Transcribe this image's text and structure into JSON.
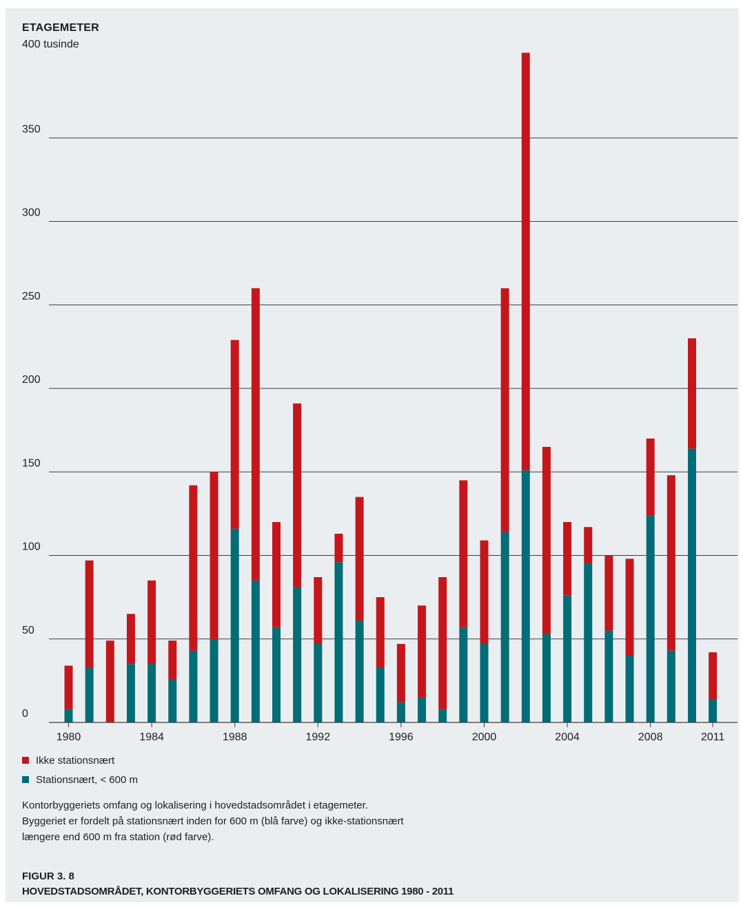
{
  "chart_data": {
    "type": "bar",
    "stacked": true,
    "ylabel_line1": "ETAGEMETER",
    "ylabel_line2": "400 tusinde",
    "ylim": [
      0,
      400
    ],
    "ytick_labels": [
      "0",
      "50",
      "100",
      "150",
      "200",
      "250",
      "300",
      "350"
    ],
    "ytick_values": [
      0,
      50,
      100,
      150,
      200,
      250,
      300,
      350
    ],
    "grid": true,
    "x": [
      1980,
      1981,
      1982,
      1983,
      1984,
      1985,
      1986,
      1987,
      1988,
      1989,
      1990,
      1991,
      1992,
      1993,
      1994,
      1995,
      1996,
      1997,
      1998,
      1999,
      2000,
      2001,
      2002,
      2003,
      2004,
      2005,
      2006,
      2007,
      2008,
      2009,
      2010,
      2011
    ],
    "xtick_labels": [
      "1980",
      "1984",
      "1988",
      "1992",
      "1996",
      "2000",
      "2004",
      "2008",
      "2011"
    ],
    "xtick_years": [
      1980,
      1984,
      1988,
      1992,
      1996,
      2000,
      2004,
      2008,
      2011
    ],
    "series": [
      {
        "name": "Stationsnært, < 600 m",
        "color": "#006d77",
        "values": [
          8,
          33,
          0,
          35,
          35,
          26,
          43,
          50,
          116,
          85,
          57,
          81,
          47,
          96,
          61,
          33,
          12,
          15,
          8,
          57,
          47,
          114,
          151,
          53,
          76,
          95,
          55,
          40,
          124,
          43,
          164,
          14
        ]
      },
      {
        "name": "Ikke stationsnært",
        "color": "#c5171b",
        "values": [
          26,
          64,
          49,
          30,
          50,
          23,
          99,
          100,
          113,
          175,
          63,
          110,
          40,
          17,
          74,
          42,
          35,
          55,
          79,
          88,
          62,
          146,
          250,
          112,
          44,
          22,
          45,
          58,
          46,
          105,
          66,
          28
        ]
      }
    ],
    "legend_position": "bottom-left"
  },
  "legend": {
    "items": [
      {
        "label": "Ikke stationsnært",
        "color": "#c5171b"
      },
      {
        "label": "Stationsnært, < 600 m",
        "color": "#006d77"
      }
    ]
  },
  "caption": "Kontorbyggeriets omfang og lokalisering i hovedstadsområdet i etagemeter. Byggeriet er fordelt på stationsnært inden for 600 m (blå farve) og ikke-stationsnært længere end 600 m fra station (rød farve).",
  "figure": {
    "number": "FIGUR 3. 8",
    "title": "HOVEDSTADSOMRÅDET, KONTORBYGGERIETS OMFANG OG LOKALISERING 1980 - 2011"
  }
}
